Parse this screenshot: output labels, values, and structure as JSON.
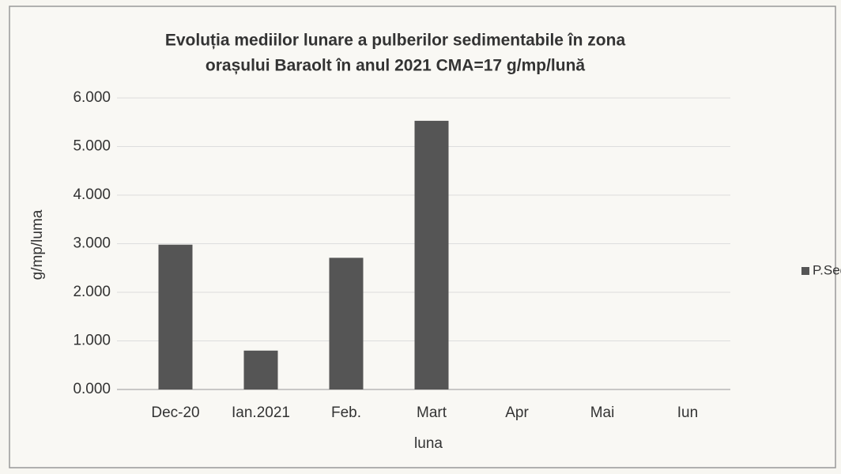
{
  "chart_data": {
    "type": "bar",
    "title": [
      "Evoluția mediilor lunare a pulberilor sedimentabile în zona",
      "orașului Baraolt în anul 2021 CMA=17 g/mp/lună"
    ],
    "x_label": "luna",
    "y_label": "g/mp/luma",
    "categories": [
      "Dec-20",
      "Ian.2021",
      "Feb.",
      "Mart",
      "Apr",
      "Mai",
      "Iun"
    ],
    "series": [
      {
        "name": "P.Sed",
        "color": "#555555",
        "values": [
          2.98,
          0.8,
          2.71,
          5.53,
          null,
          null,
          null
        ]
      }
    ],
    "ylim": [
      0,
      6
    ],
    "yticks": [
      {
        "value": 0,
        "label": "0.000"
      },
      {
        "value": 1,
        "label": "1.000"
      },
      {
        "value": 2,
        "label": "2.000"
      },
      {
        "value": 3,
        "label": "3.000"
      },
      {
        "value": 4,
        "label": "4.000"
      },
      {
        "value": 5,
        "label": "5.000"
      },
      {
        "value": 6,
        "label": "6.000"
      }
    ],
    "grid": true,
    "legend": "right"
  }
}
